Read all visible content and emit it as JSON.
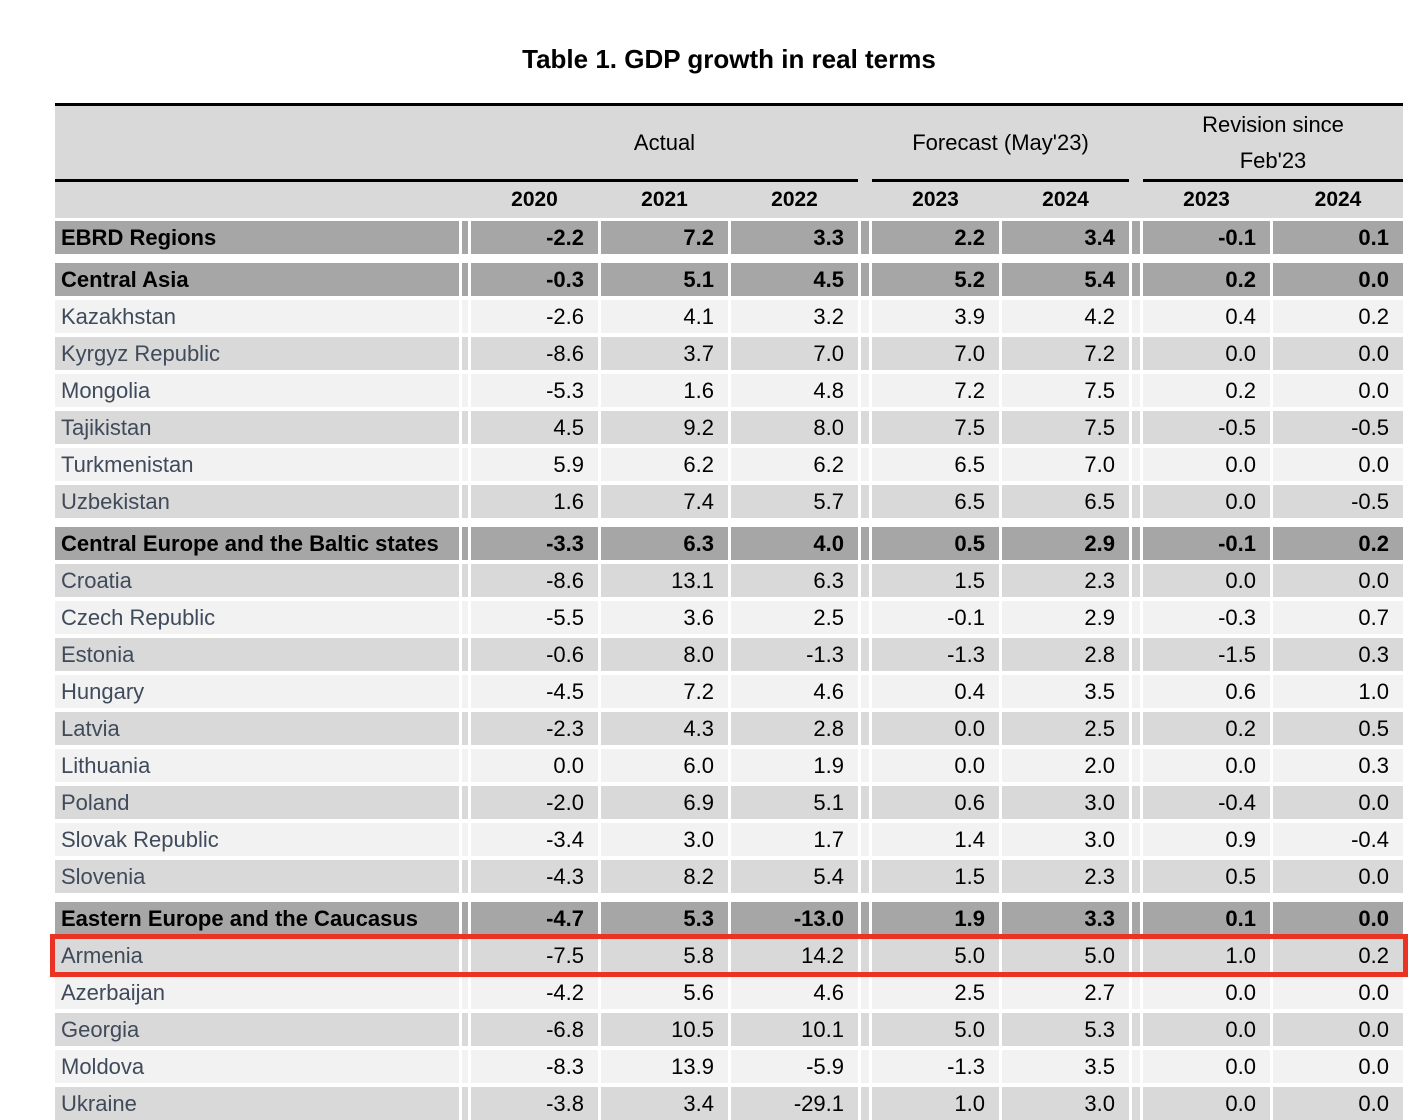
{
  "title": "Table 1. GDP growth in real terms",
  "header": {
    "groups": [
      {
        "label": "Actual",
        "span_columns": 3
      },
      {
        "label": "Forecast (May'23)",
        "span_columns": 2
      },
      {
        "label": "Revision since\nFeb'23",
        "span_columns": 2
      }
    ],
    "years": [
      "2020",
      "2021",
      "2022",
      "2023",
      "2024",
      "2023",
      "2024"
    ]
  },
  "columns": [
    "2020",
    "2021",
    "2022",
    "2023",
    "2024",
    "rev-2023",
    "rev-2024"
  ],
  "table": {
    "rows": [
      {
        "name": "EBRD Regions",
        "shade": "header",
        "values": [
          "-2.2",
          "7.2",
          "3.3",
          "2.2",
          "3.4",
          "-0.1",
          "0.1"
        ]
      },
      {
        "name": "Central Asia",
        "shade": "header",
        "gap_before": true,
        "values": [
          "-0.3",
          "5.1",
          "4.5",
          "5.2",
          "5.4",
          "0.2",
          "0.0"
        ]
      },
      {
        "name": "Kazakhstan",
        "shade": "light",
        "values": [
          "-2.6",
          "4.1",
          "3.2",
          "3.9",
          "4.2",
          "0.4",
          "0.2"
        ]
      },
      {
        "name": "Kyrgyz Republic",
        "shade": "dark",
        "values": [
          "-8.6",
          "3.7",
          "7.0",
          "7.0",
          "7.2",
          "0.0",
          "0.0"
        ]
      },
      {
        "name": "Mongolia",
        "shade": "light",
        "values": [
          "-5.3",
          "1.6",
          "4.8",
          "7.2",
          "7.5",
          "0.2",
          "0.0"
        ]
      },
      {
        "name": "Tajikistan",
        "shade": "dark",
        "values": [
          "4.5",
          "9.2",
          "8.0",
          "7.5",
          "7.5",
          "-0.5",
          "-0.5"
        ]
      },
      {
        "name": "Turkmenistan",
        "shade": "light",
        "values": [
          "5.9",
          "6.2",
          "6.2",
          "6.5",
          "7.0",
          "0.0",
          "0.0"
        ]
      },
      {
        "name": "Uzbekistan",
        "shade": "dark",
        "values": [
          "1.6",
          "7.4",
          "5.7",
          "6.5",
          "6.5",
          "0.0",
          "-0.5"
        ]
      },
      {
        "name": "Central Europe and the Baltic states",
        "shade": "header",
        "gap_before": true,
        "values": [
          "-3.3",
          "6.3",
          "4.0",
          "0.5",
          "2.9",
          "-0.1",
          "0.2"
        ]
      },
      {
        "name": "Croatia",
        "shade": "dark",
        "values": [
          "-8.6",
          "13.1",
          "6.3",
          "1.5",
          "2.3",
          "0.0",
          "0.0"
        ]
      },
      {
        "name": "Czech Republic",
        "shade": "light",
        "values": [
          "-5.5",
          "3.6",
          "2.5",
          "-0.1",
          "2.9",
          "-0.3",
          "0.7"
        ]
      },
      {
        "name": "Estonia",
        "shade": "dark",
        "values": [
          "-0.6",
          "8.0",
          "-1.3",
          "-1.3",
          "2.8",
          "-1.5",
          "0.3"
        ]
      },
      {
        "name": "Hungary",
        "shade": "light",
        "values": [
          "-4.5",
          "7.2",
          "4.6",
          "0.4",
          "3.5",
          "0.6",
          "1.0"
        ]
      },
      {
        "name": "Latvia",
        "shade": "dark",
        "values": [
          "-2.3",
          "4.3",
          "2.8",
          "0.0",
          "2.5",
          "0.2",
          "0.5"
        ]
      },
      {
        "name": "Lithuania",
        "shade": "light",
        "values": [
          "0.0",
          "6.0",
          "1.9",
          "0.0",
          "2.0",
          "0.0",
          "0.3"
        ]
      },
      {
        "name": "Poland",
        "shade": "dark",
        "values": [
          "-2.0",
          "6.9",
          "5.1",
          "0.6",
          "3.0",
          "-0.4",
          "0.0"
        ]
      },
      {
        "name": "Slovak Republic",
        "shade": "light",
        "values": [
          "-3.4",
          "3.0",
          "1.7",
          "1.4",
          "3.0",
          "0.9",
          "-0.4"
        ]
      },
      {
        "name": "Slovenia",
        "shade": "dark",
        "values": [
          "-4.3",
          "8.2",
          "5.4",
          "1.5",
          "2.3",
          "0.5",
          "0.0"
        ]
      },
      {
        "name": "Eastern Europe and the Caucasus",
        "shade": "header",
        "gap_before": true,
        "values": [
          "-4.7",
          "5.3",
          "-13.0",
          "1.9",
          "3.3",
          "0.1",
          "0.0"
        ]
      },
      {
        "name": "Armenia",
        "shade": "dark",
        "highlighted": true,
        "values": [
          "-7.5",
          "5.8",
          "14.2",
          "5.0",
          "5.0",
          "1.0",
          "0.2"
        ]
      },
      {
        "name": "Azerbaijan",
        "shade": "light",
        "values": [
          "-4.2",
          "5.6",
          "4.6",
          "2.5",
          "2.7",
          "0.0",
          "0.0"
        ]
      },
      {
        "name": "Georgia",
        "shade": "dark",
        "values": [
          "-6.8",
          "10.5",
          "10.1",
          "5.0",
          "5.3",
          "0.0",
          "0.0"
        ]
      },
      {
        "name": "Moldova",
        "shade": "light",
        "values": [
          "-8.3",
          "13.9",
          "-5.9",
          "-1.3",
          "3.5",
          "0.0",
          "0.0"
        ]
      },
      {
        "name": "Ukraine",
        "shade": "dark",
        "values": [
          "-3.8",
          "3.4",
          "-29.1",
          "1.0",
          "3.0",
          "0.0",
          "0.0"
        ]
      }
    ]
  },
  "highlight": {
    "row": "Armenia",
    "color": "#ea3323"
  },
  "colors": {
    "header_band_bg": "#d9d9d9",
    "section_row_bg": "#a6a6a6",
    "stripe_light": "#f2f2f2",
    "stripe_dark": "#d9d9d9",
    "country_text": "#3f4a5a",
    "rule_black": "#000000",
    "highlight_red": "#ea3323"
  }
}
